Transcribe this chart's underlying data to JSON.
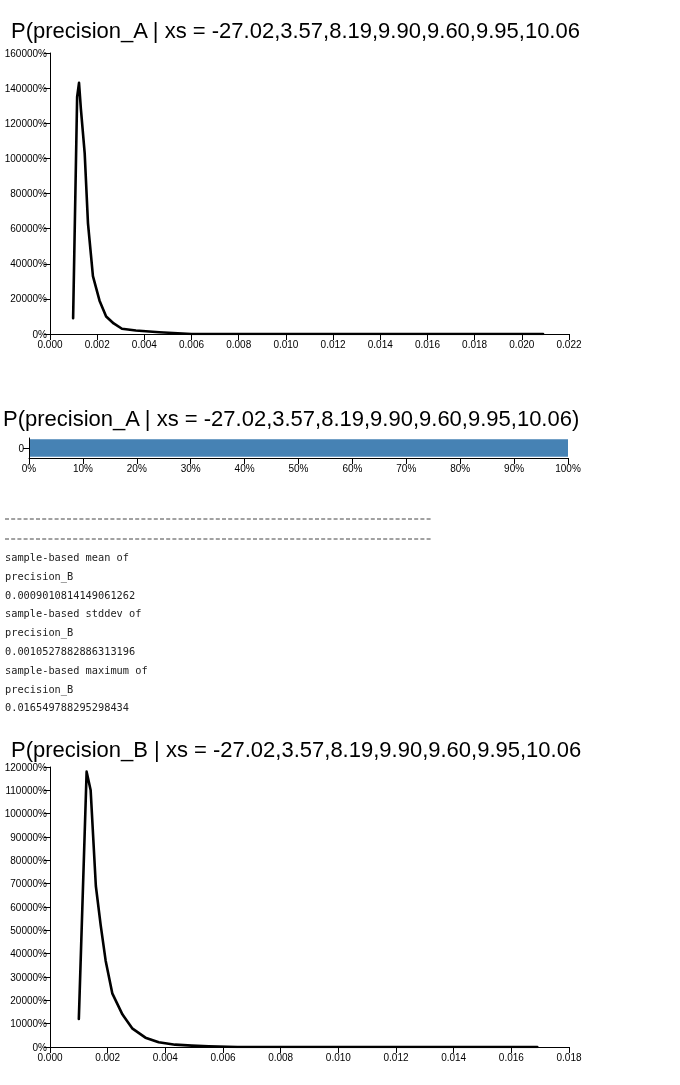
{
  "chart_data": [
    {
      "type": "line",
      "title": "P(precision_A | xs = -27.02,3.57,8.19,9.90,9.60,9.95,10.06",
      "color": "#000000",
      "x": [
        0.00098,
        0.00115,
        0.00123,
        0.00131,
        0.00147,
        0.00161,
        0.00182,
        0.0021,
        0.00238,
        0.0027,
        0.00305,
        0.00364,
        0.00463,
        0.006,
        0.008,
        0.01,
        0.013,
        0.016,
        0.0209
      ],
      "values": [
        9000,
        135000,
        143000,
        128000,
        103000,
        63000,
        33000,
        19000,
        10000,
        6000,
        3000,
        2000,
        1000,
        0,
        0,
        0,
        0,
        0,
        0
      ],
      "xlim": [
        0,
        0.022
      ],
      "xticks": [
        {
          "value": 0,
          "label": "0.000"
        },
        {
          "value": 0.002,
          "label": "0.002"
        },
        {
          "value": 0.004,
          "label": "0.004"
        },
        {
          "value": 0.006,
          "label": "0.006"
        },
        {
          "value": 0.008,
          "label": "0.008"
        },
        {
          "value": 0.01,
          "label": "0.010"
        },
        {
          "value": 0.012,
          "label": "0.012"
        },
        {
          "value": 0.014,
          "label": "0.014"
        },
        {
          "value": 0.016,
          "label": "0.016"
        },
        {
          "value": 0.018,
          "label": "0.018"
        },
        {
          "value": 0.02,
          "label": "0.020"
        },
        {
          "value": 0.022,
          "label": "0.022"
        }
      ],
      "ylim": [
        0,
        160000
      ],
      "yticks": [
        {
          "value": 0,
          "label": "0%"
        },
        {
          "value": 20000,
          "label": "20000%"
        },
        {
          "value": 40000,
          "label": "40000%"
        },
        {
          "value": 60000,
          "label": "60000%"
        },
        {
          "value": 80000,
          "label": "80000%"
        },
        {
          "value": 100000,
          "label": "100000%"
        },
        {
          "value": 120000,
          "label": "120000%"
        },
        {
          "value": 140000,
          "label": "140000%"
        },
        {
          "value": 160000,
          "label": "160000%"
        }
      ]
    },
    {
      "type": "bar",
      "title": "P(precision_A | xs = -27.02,3.57,8.19,9.90,9.60,9.95,10.06)",
      "orientation": "horizontal",
      "categories": [
        "0"
      ],
      "values": [
        100
      ],
      "color": "#4682b4",
      "xlim": [
        0,
        100
      ],
      "xticks": [
        {
          "value": 0,
          "label": "0%"
        },
        {
          "value": 10,
          "label": "10%"
        },
        {
          "value": 20,
          "label": "20%"
        },
        {
          "value": 30,
          "label": "30%"
        },
        {
          "value": 40,
          "label": "40%"
        },
        {
          "value": 50,
          "label": "50%"
        },
        {
          "value": 60,
          "label": "60%"
        },
        {
          "value": 70,
          "label": "70%"
        },
        {
          "value": 80,
          "label": "80%"
        },
        {
          "value": 90,
          "label": "90%"
        },
        {
          "value": 100,
          "label": "100%"
        }
      ]
    },
    {
      "type": "other",
      "annotations": [
        "sample-based mean of",
        "precision_B",
        "0.0009010814149061262",
        "sample-based stddev of",
        "precision_B",
        "0.0010527882886313196",
        "sample-based maximum of",
        "precision_B",
        "0.016549788295298434"
      ]
    },
    {
      "type": "line",
      "title": "P(precision_B | xs = -27.02,3.57,8.19,9.90,9.60,9.95,10.06",
      "color": "#000000",
      "x": [
        0.001,
        0.00127,
        0.00141,
        0.00159,
        0.00176,
        0.00193,
        0.00216,
        0.00251,
        0.00285,
        0.00331,
        0.00377,
        0.00434,
        0.00492,
        0.0055,
        0.0065,
        0.008,
        0.01,
        0.012,
        0.014,
        0.0169
      ],
      "values": [
        12000,
        118000,
        110000,
        69000,
        52000,
        37000,
        23000,
        14000,
        8000,
        4000,
        2000,
        1000,
        600,
        300,
        0,
        0,
        0,
        0,
        0,
        0
      ],
      "xlim": [
        0,
        0.018
      ],
      "xticks": [
        {
          "value": 0,
          "label": "0.000"
        },
        {
          "value": 0.002,
          "label": "0.002"
        },
        {
          "value": 0.004,
          "label": "0.004"
        },
        {
          "value": 0.006,
          "label": "0.006"
        },
        {
          "value": 0.008,
          "label": "0.008"
        },
        {
          "value": 0.01,
          "label": "0.010"
        },
        {
          "value": 0.012,
          "label": "0.012"
        },
        {
          "value": 0.014,
          "label": "0.014"
        },
        {
          "value": 0.016,
          "label": "0.016"
        },
        {
          "value": 0.018,
          "label": "0.018"
        }
      ],
      "ylim": [
        0,
        120000
      ],
      "yticks": [
        {
          "value": 0,
          "label": "0%"
        },
        {
          "value": 10000,
          "label": "10000%"
        },
        {
          "value": 20000,
          "label": "20000%"
        },
        {
          "value": 30000,
          "label": "30000%"
        },
        {
          "value": 40000,
          "label": "40000%"
        },
        {
          "value": 50000,
          "label": "50000%"
        },
        {
          "value": 60000,
          "label": "60000%"
        },
        {
          "value": 70000,
          "label": "70000%"
        },
        {
          "value": 80000,
          "label": "80000%"
        },
        {
          "value": 90000,
          "label": "90000%"
        },
        {
          "value": 100000,
          "label": "100000%"
        },
        {
          "value": 110000,
          "label": "110000%"
        },
        {
          "value": 120000,
          "label": "120000%"
        }
      ]
    }
  ]
}
